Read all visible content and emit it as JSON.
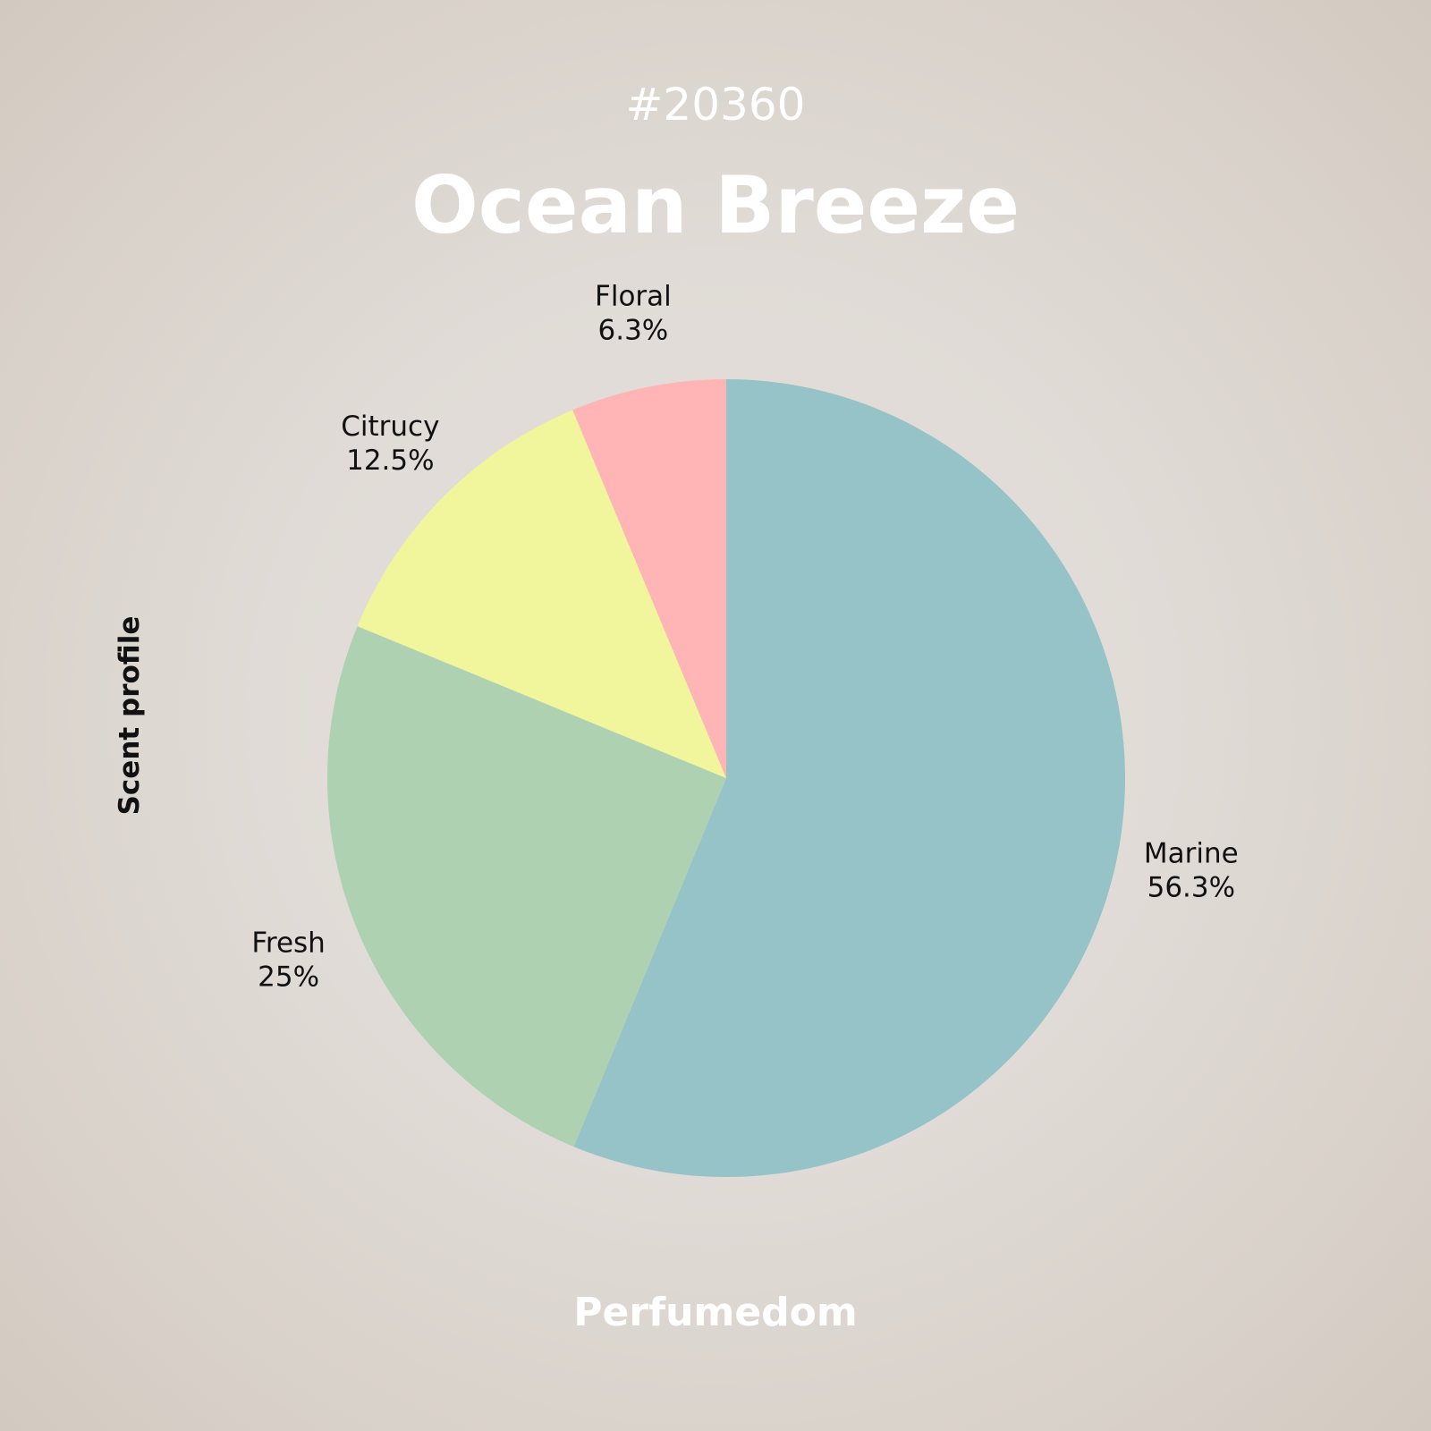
{
  "header": {
    "id": "#20360",
    "title": "Ocean Breeze"
  },
  "side_label": "Scent profile",
  "footer": {
    "brand": "Perfumedom"
  },
  "chart_data": {
    "type": "pie",
    "title": "Ocean Breeze",
    "ylabel": "Scent profile",
    "start": "12 o'clock",
    "direction": "clockwise",
    "slices": [
      {
        "label": "Marine",
        "value": 56.3,
        "display": "56.3%",
        "color": "#96c3c8"
      },
      {
        "label": "Fresh",
        "value": 25,
        "display": "25%",
        "color": "#aed2b1"
      },
      {
        "label": "Citrucy",
        "value": 12.5,
        "display": "12.5%",
        "color": "#f1f59c"
      },
      {
        "label": "Floral",
        "value": 6.3,
        "display": "6.3%",
        "color": "#ffb5b5"
      }
    ]
  }
}
